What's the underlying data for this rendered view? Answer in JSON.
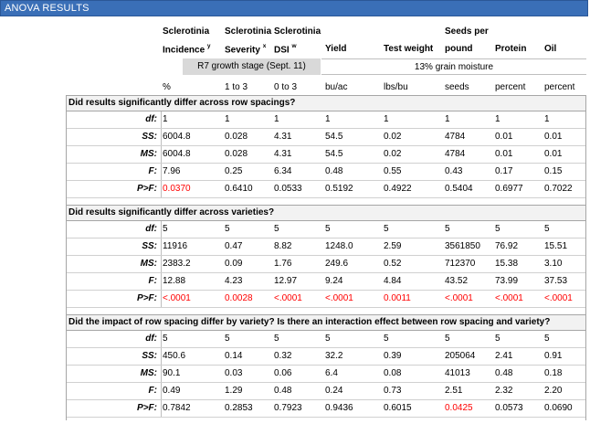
{
  "title": "ANOVA RESULTS",
  "headers": [
    {
      "line1": "Sclerotinia",
      "line2": "Incidence",
      "sup": "y"
    },
    {
      "line1": "Sclerotinia",
      "line2": "Severity",
      "sup": "x"
    },
    {
      "line1": "Sclerotinia",
      "line2": "DSI",
      "sup": "w"
    },
    {
      "line1": "",
      "line2": "Yield",
      "sup": ""
    },
    {
      "line1": "",
      "line2": "Test weight",
      "sup": ""
    },
    {
      "line1": "Seeds per",
      "line2": "pound",
      "sup": ""
    },
    {
      "line1": "",
      "line2": "Protein",
      "sup": ""
    },
    {
      "line1": "",
      "line2": "Oil",
      "sup": ""
    }
  ],
  "band_r7": "R7 growth stage (Sept. 11)",
  "band_moisture": "13% grain moisture",
  "units": [
    "%",
    "1 to 3",
    "0 to 3",
    "bu/ac",
    "lbs/bu",
    "seeds",
    "percent",
    "percent"
  ],
  "sections": [
    {
      "question": "Did results significantly differ across row spacings?",
      "rows": [
        {
          "label": "df:",
          "values": [
            "1",
            "1",
            "1",
            "1",
            "1",
            "1",
            "1",
            "1"
          ],
          "sig": []
        },
        {
          "label": "SS:",
          "values": [
            "6004.8",
            "0.028",
            "4.31",
            "54.5",
            "0.02",
            "4784",
            "0.01",
            "0.01"
          ],
          "sig": []
        },
        {
          "label": "MS:",
          "values": [
            "6004.8",
            "0.028",
            "4.31",
            "54.5",
            "0.02",
            "4784",
            "0.01",
            "0.01"
          ],
          "sig": []
        },
        {
          "label": "F:",
          "values": [
            "7.96",
            "0.25",
            "6.34",
            "0.48",
            "0.55",
            "0.43",
            "0.17",
            "0.15"
          ],
          "sig": []
        },
        {
          "label": "P>F:",
          "values": [
            "0.0370",
            "0.6410",
            "0.0533",
            "0.5192",
            "0.4922",
            "0.5404",
            "0.6977",
            "0.7022"
          ],
          "sig": [
            0
          ]
        }
      ]
    },
    {
      "question": "Did results significantly differ across varieties?",
      "rows": [
        {
          "label": "df:",
          "values": [
            "5",
            "5",
            "5",
            "5",
            "5",
            "5",
            "5",
            "5"
          ],
          "sig": []
        },
        {
          "label": "SS:",
          "values": [
            "11916",
            "0.47",
            "8.82",
            "1248.0",
            "2.59",
            "3561850",
            "76.92",
            "15.51"
          ],
          "sig": []
        },
        {
          "label": "MS:",
          "values": [
            "2383.2",
            "0.09",
            "1.76",
            "249.6",
            "0.52",
            "712370",
            "15.38",
            "3.10"
          ],
          "sig": []
        },
        {
          "label": "F:",
          "values": [
            "12.88",
            "4.23",
            "12.97",
            "9.24",
            "4.84",
            "43.52",
            "73.99",
            "37.53"
          ],
          "sig": []
        },
        {
          "label": "P>F:",
          "values": [
            "<.0001",
            "0.0028",
            "<.0001",
            "<.0001",
            "0.0011",
            "<.0001",
            "<.0001",
            "<.0001"
          ],
          "sig": [
            0,
            1,
            2,
            3,
            4,
            5,
            6,
            7
          ]
        }
      ]
    },
    {
      "question": "Did the impact of row spacing differ by variety?  Is there an interaction effect between row spacing and variety?",
      "rows": [
        {
          "label": "df:",
          "values": [
            "5",
            "5",
            "5",
            "5",
            "5",
            "5",
            "5",
            "5"
          ],
          "sig": []
        },
        {
          "label": "SS:",
          "values": [
            "450.6",
            "0.14",
            "0.32",
            "32.2",
            "0.39",
            "205064",
            "2.41",
            "0.91"
          ],
          "sig": []
        },
        {
          "label": "MS:",
          "values": [
            "90.1",
            "0.03",
            "0.06",
            "6.4",
            "0.08",
            "41013",
            "0.48",
            "0.18"
          ],
          "sig": []
        },
        {
          "label": "F:",
          "values": [
            "0.49",
            "1.29",
            "0.48",
            "0.24",
            "0.73",
            "2.51",
            "2.32",
            "2.20"
          ],
          "sig": []
        },
        {
          "label": "P>F:",
          "values": [
            "0.7842",
            "0.2853",
            "0.7923",
            "0.9436",
            "0.6015",
            "0.0425",
            "0.0573",
            "0.0690"
          ],
          "sig": [
            5
          ]
        }
      ]
    }
  ]
}
